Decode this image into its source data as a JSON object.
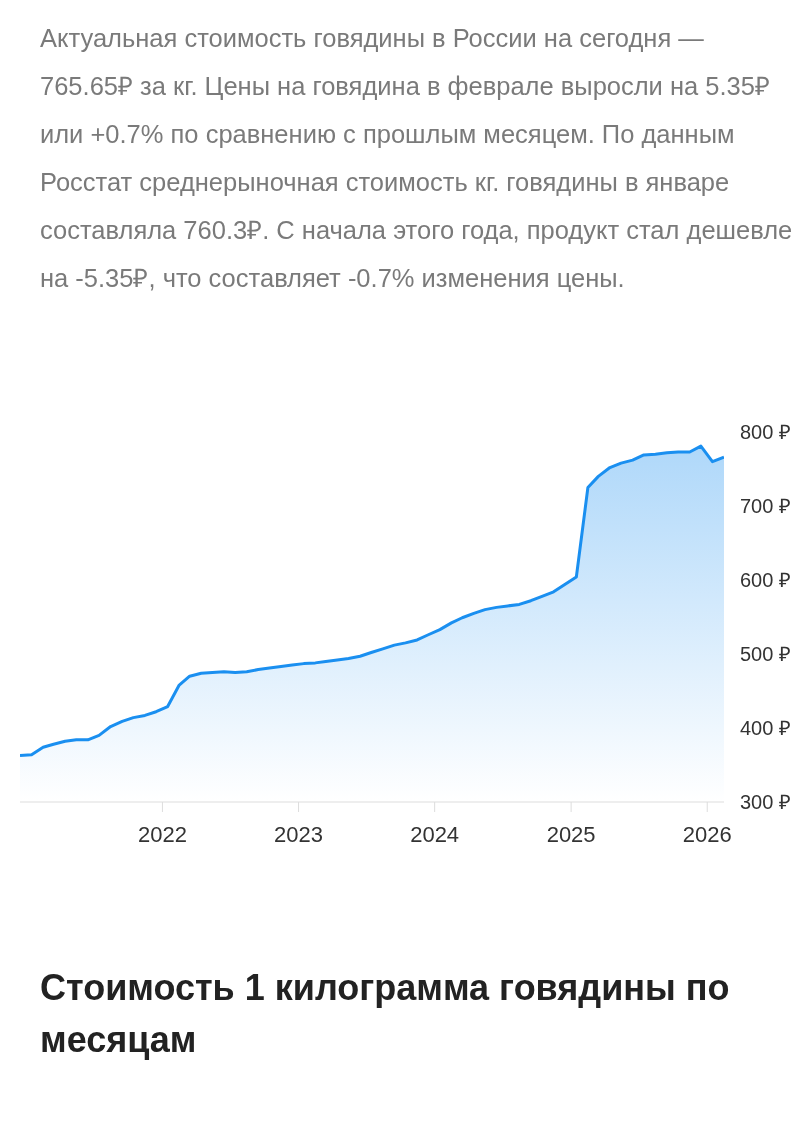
{
  "chart_data": {
    "type": "area",
    "subtitle": "Актуальная стоимость говядины в России на сегодня — 765.65₽ за кг. Цены на говядина в феврале выросли на 5.35₽ или +0.7% по сравнению с прошлым месяцем. По данным Росстат среднерыночная стоимость кг. говядины в январе составляла 760.3₽. С начала этого года, продукт стал дешевле на -5.35₽, что составляет -0.7% изменения цены.",
    "title": "Стоимость 1 килограмма говядины по месяцам",
    "x": [
      "2020-12-15",
      "2021-01-15",
      "2021-02-15",
      "2021-03-15",
      "2021-04-15",
      "2021-05-15",
      "2021-06-15",
      "2021-07-15",
      "2021-08-15",
      "2021-09-15",
      "2021-10-15",
      "2021-11-15",
      "2021-12-15",
      "2022-01-15",
      "2022-02-15",
      "2022-03-15",
      "2022-04-15",
      "2022-05-15",
      "2022-06-15",
      "2022-07-15",
      "2022-08-15",
      "2022-09-15",
      "2022-10-15",
      "2022-11-15",
      "2022-12-15",
      "2023-01-15",
      "2023-02-15",
      "2023-03-15",
      "2023-04-15",
      "2023-05-15",
      "2023-06-15",
      "2023-07-15",
      "2023-08-15",
      "2023-09-15",
      "2023-10-15",
      "2023-11-15",
      "2023-12-15",
      "2024-01-15",
      "2024-02-15",
      "2024-03-15",
      "2024-04-15",
      "2024-05-15",
      "2024-06-15",
      "2024-07-15",
      "2024-08-15",
      "2024-09-15",
      "2024-10-15",
      "2024-11-15",
      "2024-12-15",
      "2025-01-15",
      "2025-02-15",
      "2025-03-15",
      "2025-04-15",
      "2025-05-15",
      "2025-06-15",
      "2025-07-15",
      "2025-08-15",
      "2025-09-15",
      "2025-10-15",
      "2025-11-15",
      "2025-12-15",
      "2026-01-15",
      "2026-02-15"
    ],
    "series": [
      {
        "color": "#1a8ff0",
        "values": [
          363,
          364,
          374,
          378,
          382,
          384,
          384,
          390,
          402,
          409,
          414,
          417,
          422,
          429,
          458,
          470,
          474,
          475,
          476,
          475,
          476,
          479,
          481,
          483,
          485,
          487,
          488,
          490,
          492,
          494,
          497,
          502,
          507,
          512,
          515,
          519,
          526,
          533,
          542,
          549,
          555,
          560,
          563,
          565,
          567,
          572,
          578,
          584,
          594,
          604,
          725,
          740,
          752,
          758,
          762,
          769,
          770,
          772,
          773,
          773,
          781,
          760,
          766
        ]
      }
    ],
    "xlim": [
      "2020-12-15",
      "2026-02-15"
    ],
    "xticks": [
      {
        "value": "2022",
        "label": "2022"
      },
      {
        "value": "2023",
        "label": "2023"
      },
      {
        "value": "2024",
        "label": "2024"
      },
      {
        "value": "2025",
        "label": "2025"
      },
      {
        "value": "2026",
        "label": "2026"
      }
    ],
    "ylim": [
      300,
      800
    ],
    "yticks": [
      {
        "value": 300,
        "label": "300 ₽"
      },
      {
        "value": 400,
        "label": "400 ₽"
      },
      {
        "value": 500,
        "label": "500 ₽"
      },
      {
        "value": 600,
        "label": "600 ₽"
      },
      {
        "value": 700,
        "label": "700 ₽"
      },
      {
        "value": 800,
        "label": "800 ₽"
      }
    ],
    "legend": false
  }
}
